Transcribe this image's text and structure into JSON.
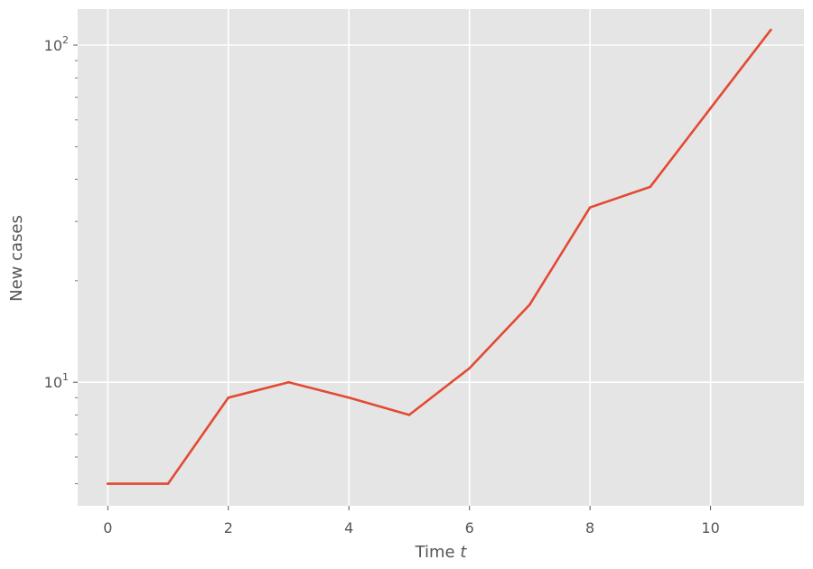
{
  "chart_data": {
    "type": "line",
    "xlabel": "Time",
    "xlabel_var": "t",
    "ylabel": "New cases",
    "yscale": "log",
    "grid": true,
    "xlim": [
      -0.5,
      11.55
    ],
    "ylim": [
      4.3,
      128
    ],
    "x_ticks": [
      0,
      2,
      4,
      6,
      8,
      10
    ],
    "y_ticks": [
      {
        "value": 10,
        "base": "10",
        "exp": "1"
      },
      {
        "value": 100,
        "base": "10",
        "exp": "2"
      }
    ],
    "y_minor_ticks": [
      5,
      6,
      7,
      8,
      9,
      20,
      30,
      40,
      50,
      60,
      70,
      80,
      90
    ],
    "series": [
      {
        "color": "#E24A33",
        "x": [
          0,
          1,
          2,
          3,
          4,
          5,
          6,
          7,
          8,
          9,
          10,
          11
        ],
        "y": [
          5,
          5,
          9,
          10,
          9,
          8,
          11,
          17,
          33,
          38,
          65,
          111
        ]
      }
    ],
    "background_color": "#E5E5E5",
    "grid_color": "#FFFFFF"
  }
}
